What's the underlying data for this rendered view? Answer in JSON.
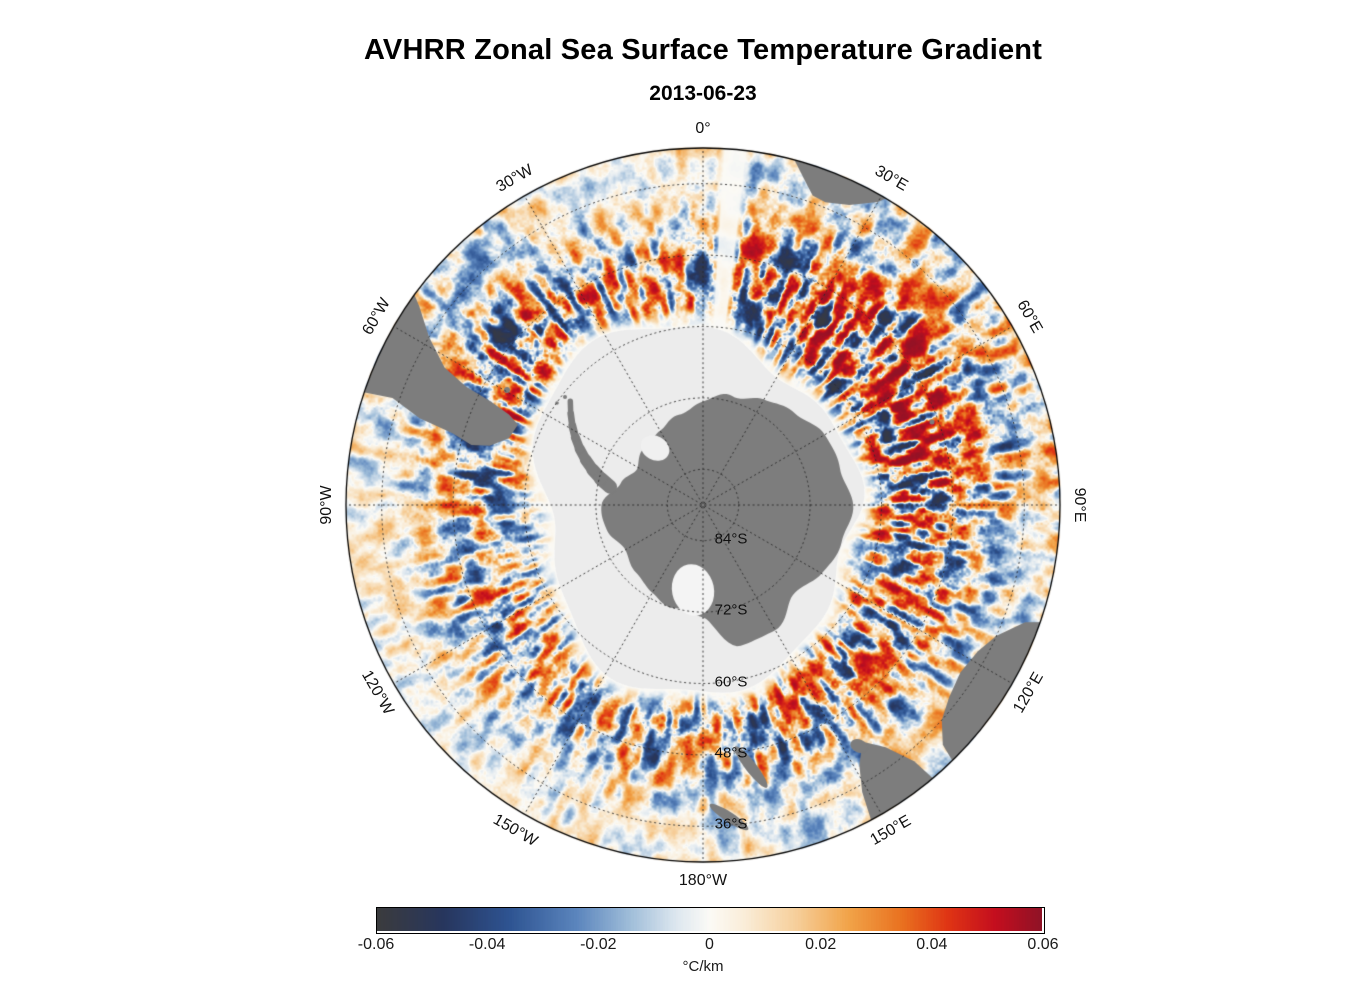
{
  "figure": {
    "title": "AVHRR Zonal Sea Surface Temperature Gradient",
    "subtitle": "2013-06-23"
  },
  "chart_data": {
    "type": "heatmap",
    "projection": "south_polar_stereographic",
    "title": "AVHRR Zonal Sea Surface Temperature Gradient",
    "date": "2013-06-23",
    "variable": "zonal sea surface temperature gradient",
    "units": "°C/km",
    "value_range": [
      -0.06,
      0.06
    ],
    "outer_latitude_deg_south": 30,
    "graticule": {
      "meridian_step_deg": 30,
      "parallel_step_deg": 12
    },
    "latitude_circles": [
      {
        "label": "84°S",
        "lat_deg_south": 84
      },
      {
        "label": "72°S",
        "lat_deg_south": 72
      },
      {
        "label": "60°S",
        "lat_deg_south": 60
      },
      {
        "label": "48°S",
        "lat_deg_south": 48
      },
      {
        "label": "36°S",
        "lat_deg_south": 36
      }
    ],
    "longitude_labels": [
      {
        "label": "0°",
        "lon_deg_east": 0
      },
      {
        "label": "30°E",
        "lon_deg_east": 30
      },
      {
        "label": "60°E",
        "lon_deg_east": 60
      },
      {
        "label": "90°E",
        "lon_deg_east": 90
      },
      {
        "label": "120°E",
        "lon_deg_east": 120
      },
      {
        "label": "150°E",
        "lon_deg_east": 150
      },
      {
        "label": "180°W",
        "lon_deg_east": 180
      },
      {
        "label": "150°W",
        "lon_deg_east": -150
      },
      {
        "label": "120°W",
        "lon_deg_east": -120
      },
      {
        "label": "90°W",
        "lon_deg_east": -90
      },
      {
        "label": "60°W",
        "lon_deg_east": -60
      },
      {
        "label": "30°W",
        "lon_deg_east": -30
      }
    ],
    "colorbar": {
      "label": "°C/km",
      "tick_labels": [
        "-0.06",
        "-0.04",
        "-0.02",
        "0",
        "0.02",
        "0.04",
        "0.06"
      ],
      "tick_values": [
        -0.06,
        -0.04,
        -0.02,
        0,
        0.02,
        0.04,
        0.06
      ],
      "stops": [
        {
          "t": 0.0,
          "color": "#3b3b3d"
        },
        {
          "t": 0.1,
          "color": "#27365e"
        },
        {
          "t": 0.2,
          "color": "#2e5492"
        },
        {
          "t": 0.3,
          "color": "#5b85bd"
        },
        {
          "t": 0.38,
          "color": "#9fbdd9"
        },
        {
          "t": 0.45,
          "color": "#dde7ef"
        },
        {
          "t": 0.5,
          "color": "#fbfaf6"
        },
        {
          "t": 0.55,
          "color": "#faeeda"
        },
        {
          "t": 0.63,
          "color": "#f6cf9b"
        },
        {
          "t": 0.71,
          "color": "#f1a348"
        },
        {
          "t": 0.79,
          "color": "#e9711f"
        },
        {
          "t": 0.86,
          "color": "#df3414"
        },
        {
          "t": 0.93,
          "color": "#c40e1e"
        },
        {
          "t": 1.0,
          "color": "#8f1226"
        }
      ]
    },
    "colors": {
      "land": "#7d7d7d",
      "sea_ice": "#ececec",
      "background": "#ffffff",
      "grid": "#2b2b2b",
      "outline": "#000000"
    },
    "land_features": [
      "Antarctica",
      "South America",
      "Africa",
      "Australia",
      "Tasmania",
      "New Zealand"
    ]
  }
}
